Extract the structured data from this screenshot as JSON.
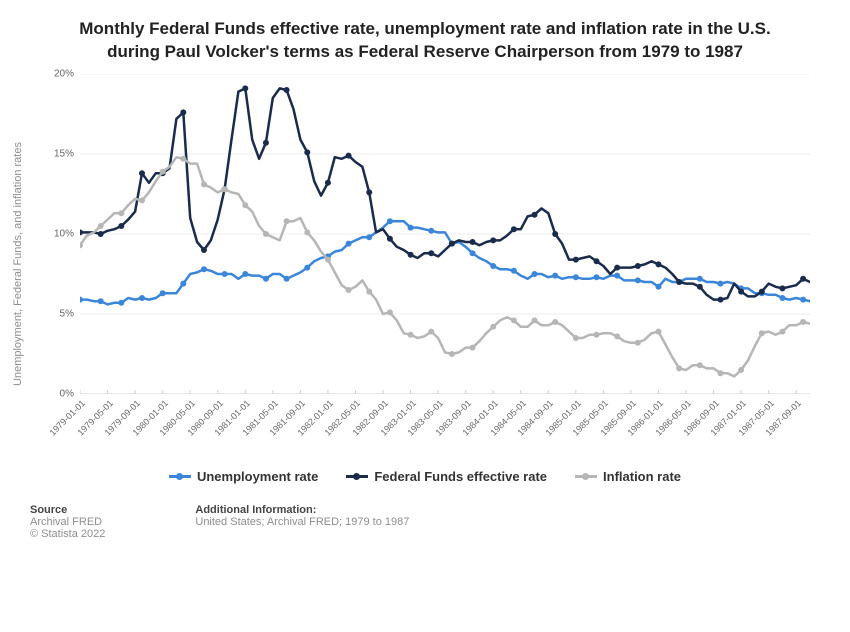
{
  "title_line1": "Monthly Federal Funds effective rate, unemployment rate and inflation rate in the U.S.",
  "title_line2": "during Paul Volcker's terms as Federal Reserve Chairperson from 1979 to 1987",
  "chart": {
    "type": "line",
    "background_color": "#ffffff",
    "grid_color": "#ececec",
    "axis_color": "#cfcfcf",
    "y": {
      "label": "Unemployment, Federal Funds, and inflation rates",
      "lim": [
        0,
        20
      ],
      "ticks": [
        0,
        5,
        10,
        15,
        20
      ],
      "tick_labels": [
        "0%",
        "5%",
        "10%",
        "15%",
        "20%"
      ],
      "label_color": "#8e8e8e",
      "tick_font_size": 10,
      "label_font_size": 11
    },
    "x": {
      "domain_months": 106,
      "tick_month_indices": [
        0,
        4,
        8,
        12,
        16,
        20,
        24,
        28,
        32,
        36,
        40,
        44,
        48,
        52,
        56,
        60,
        64,
        68,
        72,
        76,
        80,
        84,
        88,
        92,
        96,
        100,
        104
      ],
      "tick_labels": [
        "1979-01-01",
        "1979-05-01",
        "1979-09-01",
        "1980-01-01",
        "1980-05-01",
        "1980-09-01",
        "1981-01-01",
        "1981-05-01",
        "1981-09-01",
        "1982-01-01",
        "1982-05-01",
        "1982-09-01",
        "1983-01-01",
        "1983-05-01",
        "1983-09-01",
        "1984-01-01",
        "1984-05-01",
        "1984-09-01",
        "1985-01-01",
        "1985-05-01",
        "1985-09-01",
        "1986-01-01",
        "1986-05-01",
        "1986-09-01",
        "1987-01-01",
        "1987-05-01",
        "1987-09-01"
      ],
      "tick_font_size": 9,
      "rotation_deg": -45
    },
    "marker_every": 3,
    "stroke_width": 2.5,
    "marker_radius": 3,
    "series": [
      {
        "name": "Unemployment rate",
        "color": "#3b86d9",
        "values": [
          5.9,
          5.9,
          5.8,
          5.8,
          5.6,
          5.7,
          5.7,
          6.0,
          5.9,
          6.0,
          5.9,
          6.0,
          6.3,
          6.3,
          6.3,
          6.9,
          7.5,
          7.6,
          7.8,
          7.7,
          7.5,
          7.5,
          7.5,
          7.2,
          7.5,
          7.4,
          7.4,
          7.2,
          7.5,
          7.5,
          7.2,
          7.4,
          7.6,
          7.9,
          8.3,
          8.5,
          8.6,
          8.9,
          9.0,
          9.4,
          9.6,
          9.8,
          9.8,
          10.1,
          10.4,
          10.8,
          10.8,
          10.8,
          10.4,
          10.4,
          10.3,
          10.2,
          10.1,
          10.1,
          9.4,
          9.5,
          9.2,
          8.8,
          8.5,
          8.3,
          8.0,
          7.8,
          7.8,
          7.7,
          7.4,
          7.2,
          7.5,
          7.5,
          7.3,
          7.4,
          7.2,
          7.3,
          7.3,
          7.2,
          7.2,
          7.3,
          7.2,
          7.4,
          7.4,
          7.1,
          7.1,
          7.1,
          7.0,
          7.0,
          6.7,
          7.2,
          7.0,
          7.0,
          7.2,
          7.2,
          7.2,
          7.0,
          7.0,
          6.9,
          7.0,
          6.9,
          6.6,
          6.6,
          6.3,
          6.3,
          6.2,
          6.2,
          6.0,
          5.9,
          6.0,
          5.9,
          5.8
        ]
      },
      {
        "name": "Federal Funds effective rate",
        "color": "#1b2b4b",
        "values": [
          10.1,
          10.1,
          10.1,
          10.0,
          10.2,
          10.3,
          10.5,
          10.9,
          11.4,
          13.8,
          13.2,
          13.8,
          13.8,
          14.1,
          17.2,
          17.6,
          11.0,
          9.5,
          9.0,
          9.6,
          10.9,
          12.8,
          15.9,
          18.9,
          19.1,
          15.9,
          14.7,
          15.7,
          18.5,
          19.1,
          19.0,
          17.8,
          15.9,
          15.1,
          13.3,
          12.4,
          13.2,
          14.8,
          14.7,
          14.9,
          14.5,
          14.2,
          12.6,
          10.1,
          10.3,
          9.7,
          9.2,
          9.0,
          8.7,
          8.5,
          8.8,
          8.8,
          8.6,
          9.0,
          9.4,
          9.6,
          9.5,
          9.5,
          9.3,
          9.5,
          9.6,
          9.6,
          9.9,
          10.3,
          10.3,
          11.1,
          11.2,
          11.6,
          11.3,
          10.0,
          9.4,
          8.4,
          8.4,
          8.5,
          8.6,
          8.3,
          8.0,
          7.5,
          7.9,
          7.9,
          7.9,
          8.0,
          8.1,
          8.3,
          8.1,
          7.9,
          7.5,
          7.0,
          6.9,
          6.9,
          6.7,
          6.2,
          5.9,
          5.9,
          6.0,
          6.9,
          6.4,
          6.1,
          6.1,
          6.4,
          6.9,
          6.7,
          6.6,
          6.7,
          6.8,
          7.2,
          7.0
        ]
      },
      {
        "name": "Inflation rate",
        "color": "#b6b6b6",
        "values": [
          9.3,
          9.9,
          10.1,
          10.5,
          10.9,
          11.3,
          11.3,
          11.8,
          12.2,
          12.1,
          12.6,
          13.3,
          13.9,
          14.2,
          14.8,
          14.7,
          14.4,
          14.4,
          13.1,
          12.9,
          12.6,
          12.8,
          12.6,
          12.5,
          11.8,
          11.4,
          10.5,
          10.0,
          9.8,
          9.6,
          10.8,
          10.8,
          11.0,
          10.1,
          9.6,
          8.9,
          8.4,
          7.6,
          6.8,
          6.5,
          6.7,
          7.1,
          6.4,
          5.9,
          5.0,
          5.1,
          4.6,
          3.8,
          3.7,
          3.5,
          3.6,
          3.9,
          3.5,
          2.6,
          2.5,
          2.6,
          2.9,
          2.9,
          3.3,
          3.8,
          4.2,
          4.6,
          4.8,
          4.6,
          4.2,
          4.2,
          4.6,
          4.3,
          4.3,
          4.5,
          4.3,
          3.9,
          3.5,
          3.5,
          3.7,
          3.7,
          3.8,
          3.8,
          3.6,
          3.3,
          3.2,
          3.2,
          3.4,
          3.8,
          3.9,
          3.1,
          2.3,
          1.6,
          1.5,
          1.8,
          1.8,
          1.6,
          1.6,
          1.3,
          1.3,
          1.1,
          1.5,
          2.1,
          3.0,
          3.8,
          3.9,
          3.7,
          3.9,
          4.3,
          4.3,
          4.5,
          4.4
        ]
      }
    ]
  },
  "legend": {
    "font_size": 13,
    "font_weight": "bold"
  },
  "footer": {
    "source_heading": "Source",
    "source_text": "Archival FRED",
    "copyright": "© Statista 2022",
    "additional_heading": "Additional Information:",
    "additional_text": "United States; Archival FRED; 1979 to 1987"
  }
}
